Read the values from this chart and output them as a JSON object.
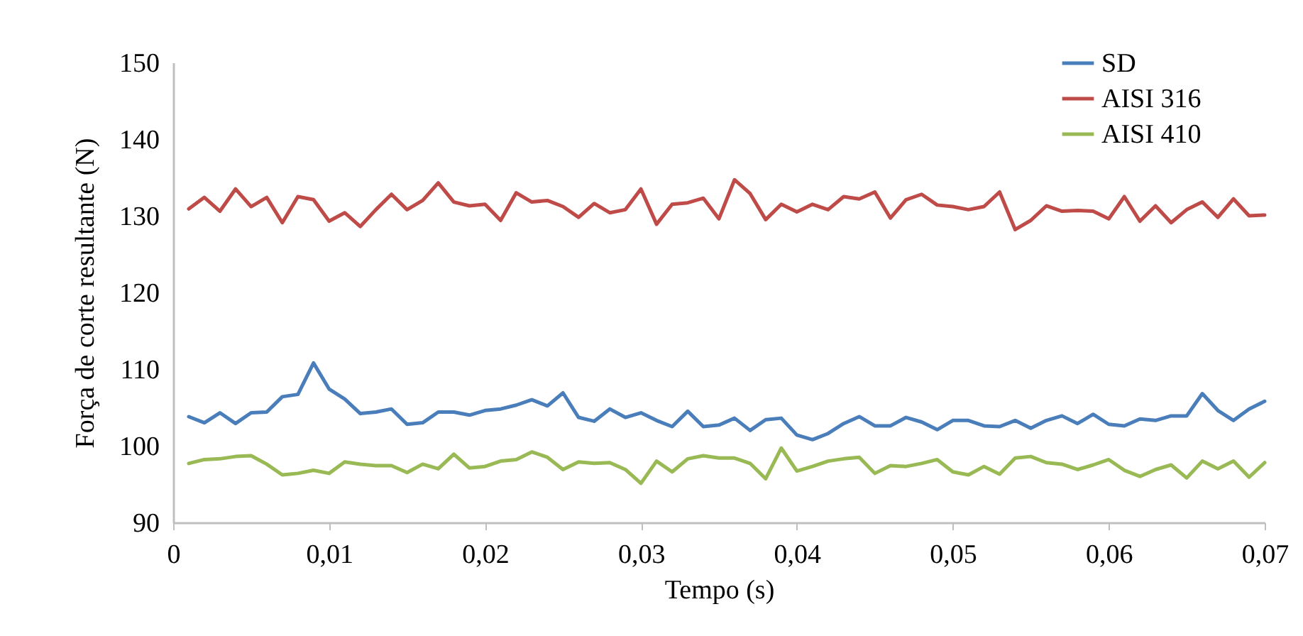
{
  "chart_data": {
    "type": "line",
    "xlabel": "Tempo (s)",
    "ylabel": "Força de corte resultante (N)",
    "x": [
      0.001,
      0.002,
      0.003,
      0.004,
      0.005,
      0.006,
      0.007,
      0.008,
      0.009,
      0.01,
      0.011,
      0.012,
      0.013,
      0.014,
      0.015,
      0.016,
      0.017,
      0.018,
      0.019,
      0.02,
      0.021,
      0.022,
      0.023,
      0.024,
      0.025,
      0.026,
      0.027,
      0.028,
      0.029,
      0.03,
      0.031,
      0.032,
      0.033,
      0.034,
      0.035,
      0.036,
      0.037,
      0.038,
      0.039,
      0.04,
      0.041,
      0.042,
      0.043,
      0.044,
      0.045,
      0.046,
      0.047,
      0.048,
      0.049,
      0.05,
      0.051,
      0.052,
      0.053,
      0.054,
      0.055,
      0.056,
      0.057,
      0.058,
      0.059,
      0.06,
      0.061,
      0.062,
      0.063,
      0.064,
      0.065,
      0.066,
      0.067,
      0.068,
      0.069,
      0.07
    ],
    "series": [
      {
        "name": "SD",
        "color": "#4a7ebb",
        "values": [
          103.8,
          103.0,
          104.3,
          102.9,
          104.3,
          104.4,
          106.4,
          106.7,
          110.8,
          107.4,
          106.1,
          104.2,
          104.4,
          104.8,
          102.8,
          103.0,
          104.4,
          104.4,
          104.0,
          104.6,
          104.8,
          105.3,
          106.0,
          105.2,
          106.9,
          103.7,
          103.2,
          104.8,
          103.7,
          104.3,
          103.3,
          102.5,
          104.5,
          102.5,
          102.7,
          103.6,
          102.0,
          103.4,
          103.6,
          101.4,
          100.8,
          101.6,
          102.9,
          103.8,
          102.6,
          102.6,
          103.7,
          103.1,
          102.1,
          103.3,
          103.3,
          102.6,
          102.5,
          103.3,
          102.3,
          103.3,
          103.9,
          102.9,
          104.1,
          102.8,
          102.6,
          103.5,
          103.3,
          103.9,
          103.9,
          106.8,
          104.6,
          103.3,
          104.8,
          105.8
        ]
      },
      {
        "name": "AISI 316",
        "color": "#be4b48",
        "values": [
          130.9,
          132.4,
          130.6,
          133.5,
          131.2,
          132.4,
          129.1,
          132.5,
          132.1,
          129.3,
          130.4,
          128.6,
          130.8,
          132.8,
          130.8,
          132.0,
          134.3,
          131.8,
          131.3,
          131.5,
          129.4,
          133.0,
          131.8,
          132.0,
          131.2,
          129.8,
          131.6,
          130.4,
          130.8,
          133.5,
          128.9,
          131.5,
          131.7,
          132.3,
          129.6,
          134.7,
          132.9,
          129.5,
          131.5,
          130.5,
          131.5,
          130.8,
          132.5,
          132.2,
          133.1,
          129.7,
          132.1,
          132.8,
          131.4,
          131.2,
          130.8,
          131.2,
          133.1,
          128.2,
          129.4,
          131.3,
          130.6,
          130.7,
          130.6,
          129.6,
          132.5,
          129.3,
          131.3,
          129.1,
          130.8,
          131.8,
          129.8,
          132.2,
          130.0,
          130.1
        ]
      },
      {
        "name": "AISI 410",
        "color": "#98b954",
        "values": [
          97.7,
          98.2,
          98.3,
          98.6,
          98.7,
          97.6,
          96.2,
          96.4,
          96.8,
          96.4,
          97.9,
          97.6,
          97.4,
          97.4,
          96.5,
          97.6,
          97.0,
          98.9,
          97.1,
          97.3,
          98.0,
          98.2,
          99.2,
          98.5,
          96.9,
          97.9,
          97.7,
          97.8,
          96.9,
          95.1,
          98.0,
          96.6,
          98.3,
          98.7,
          98.4,
          98.4,
          97.7,
          95.7,
          99.7,
          96.7,
          97.3,
          98.0,
          98.3,
          98.5,
          96.4,
          97.4,
          97.3,
          97.7,
          98.2,
          96.6,
          96.2,
          97.3,
          96.3,
          98.4,
          98.6,
          97.8,
          97.6,
          96.9,
          97.5,
          98.2,
          96.8,
          96.0,
          96.9,
          97.5,
          95.8,
          98.0,
          97.0,
          98.0,
          95.9,
          97.8
        ]
      }
    ],
    "xlim": [
      0,
      0.07
    ],
    "xticks": [
      {
        "value": 0,
        "label": "0"
      },
      {
        "value": 0.01,
        "label": "0,01"
      },
      {
        "value": 0.02,
        "label": "0,02"
      },
      {
        "value": 0.03,
        "label": "0,03"
      },
      {
        "value": 0.04,
        "label": "0,04"
      },
      {
        "value": 0.05,
        "label": "0,05"
      },
      {
        "value": 0.06,
        "label": "0,06"
      },
      {
        "value": 0.07,
        "label": "0,07"
      }
    ],
    "ylim": [
      90,
      150
    ],
    "yticks": [
      90,
      100,
      110,
      120,
      130,
      140,
      150
    ],
    "grid": false,
    "legend": "top right",
    "marker": "none",
    "line_style": "solid"
  }
}
